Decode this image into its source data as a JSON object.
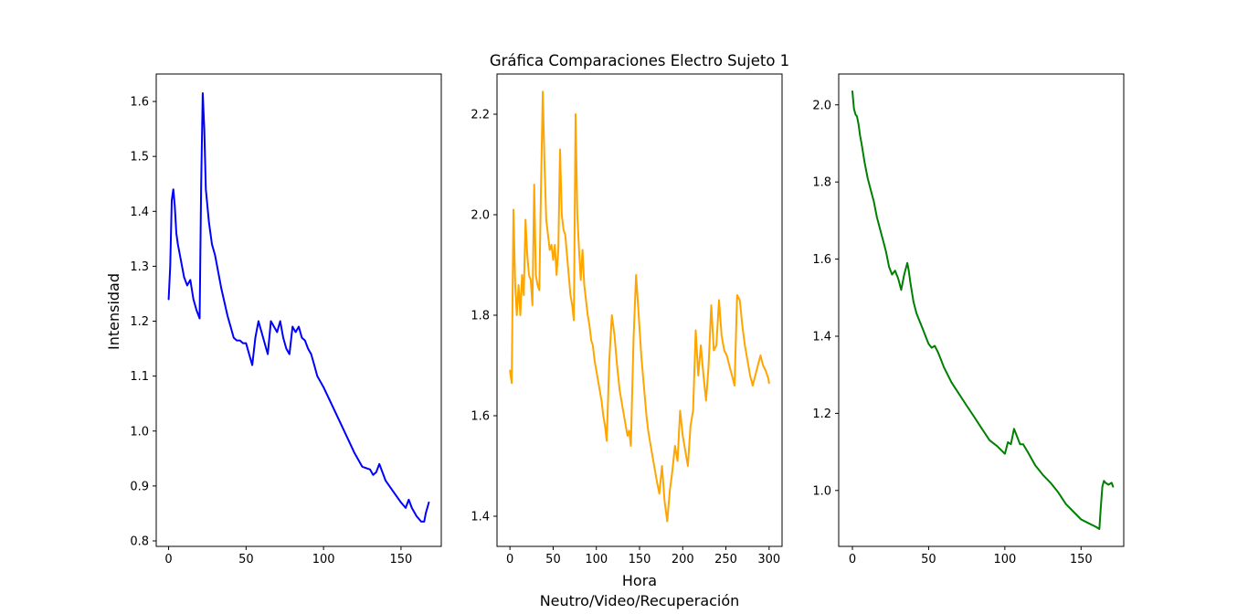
{
  "title": "Gráfica Comparaciones Electro Sujeto 1",
  "xlabel": "Hora",
  "xlabel_sub": "Neutro/Video/Recuperación",
  "ylabel": "Intensidad",
  "chart_data": [
    {
      "type": "line",
      "color": "#0000ff",
      "xlim": [
        -8,
        176
      ],
      "ylim": [
        0.79,
        1.65
      ],
      "xticks": [
        0,
        50,
        100,
        150
      ],
      "yticks": [
        0.8,
        0.9,
        1.0,
        1.1,
        1.2,
        1.3,
        1.4,
        1.5,
        1.6
      ],
      "ytick_labels": [
        "0.8",
        "0.9",
        "1.0",
        "1.1",
        "1.2",
        "1.3",
        "1.4",
        "1.5",
        "1.6"
      ],
      "series": [
        {
          "x": [
            0,
            1,
            2,
            3,
            4,
            5,
            6,
            8,
            10,
            12,
            14,
            16,
            18,
            20,
            21,
            22,
            23,
            24,
            26,
            28,
            30,
            32,
            34,
            36,
            38,
            40,
            42,
            44,
            46,
            48,
            50,
            52,
            54,
            56,
            58,
            60,
            62,
            64,
            66,
            68,
            70,
            72,
            74,
            76,
            78,
            80,
            82,
            84,
            86,
            88,
            90,
            92,
            94,
            96,
            98,
            100,
            105,
            110,
            115,
            120,
            125,
            130,
            132,
            134,
            136,
            140,
            145,
            150,
            153,
            155,
            157,
            160,
            163,
            165,
            166,
            168
          ],
          "y": [
            1.24,
            1.3,
            1.42,
            1.44,
            1.41,
            1.36,
            1.34,
            1.31,
            1.28,
            1.265,
            1.275,
            1.24,
            1.22,
            1.205,
            1.45,
            1.615,
            1.55,
            1.44,
            1.38,
            1.34,
            1.32,
            1.29,
            1.26,
            1.235,
            1.21,
            1.19,
            1.17,
            1.165,
            1.165,
            1.16,
            1.16,
            1.14,
            1.12,
            1.17,
            1.2,
            1.18,
            1.16,
            1.14,
            1.2,
            1.19,
            1.18,
            1.2,
            1.17,
            1.15,
            1.14,
            1.19,
            1.18,
            1.19,
            1.17,
            1.165,
            1.15,
            1.14,
            1.12,
            1.1,
            1.09,
            1.08,
            1.05,
            1.02,
            0.99,
            0.96,
            0.935,
            0.93,
            0.92,
            0.925,
            0.94,
            0.91,
            0.89,
            0.87,
            0.86,
            0.875,
            0.86,
            0.845,
            0.835,
            0.835,
            0.85,
            0.87
          ]
        }
      ]
    },
    {
      "type": "line",
      "color": "#ffa500",
      "xlim": [
        -15,
        315
      ],
      "ylim": [
        1.34,
        2.28
      ],
      "xticks": [
        0,
        50,
        100,
        150,
        200,
        250,
        300
      ],
      "xtick_labels": [
        "0",
        "50",
        "100",
        "150",
        "200",
        "250",
        "300"
      ],
      "yticks": [
        1.4,
        1.6,
        1.8,
        2.0,
        2.2
      ],
      "ytick_labels": [
        "1.4",
        "1.6",
        "1.8",
        "2.0",
        "2.2"
      ],
      "series": [
        {
          "x": [
            0,
            2,
            4,
            6,
            8,
            10,
            12,
            14,
            16,
            18,
            20,
            22,
            24,
            26,
            28,
            30,
            32,
            34,
            36,
            38,
            40,
            42,
            44,
            46,
            48,
            50,
            52,
            54,
            56,
            58,
            60,
            62,
            64,
            66,
            68,
            70,
            72,
            74,
            76,
            78,
            80,
            82,
            84,
            86,
            88,
            90,
            92,
            94,
            96,
            98,
            100,
            102,
            104,
            106,
            108,
            110,
            112,
            115,
            118,
            121,
            124,
            127,
            130,
            132,
            134,
            136,
            138,
            140,
            143,
            146,
            149,
            152,
            155,
            158,
            160,
            162,
            164,
            166,
            168,
            170,
            173,
            176,
            179,
            182,
            185,
            188,
            191,
            194,
            197,
            200,
            203,
            206,
            209,
            212,
            215,
            218,
            221,
            224,
            227,
            230,
            233,
            236,
            239,
            242,
            245,
            248,
            251,
            254,
            257,
            260,
            263,
            266,
            269,
            272,
            275,
            278,
            281,
            284,
            287,
            290,
            293,
            296,
            299,
            300
          ],
          "y": [
            1.69,
            1.665,
            2.01,
            1.86,
            1.8,
            1.86,
            1.8,
            1.88,
            1.84,
            1.99,
            1.92,
            1.88,
            1.87,
            1.82,
            2.06,
            1.88,
            1.86,
            1.85,
            2.06,
            2.245,
            2.1,
            1.99,
            1.96,
            1.93,
            1.94,
            1.91,
            1.94,
            1.88,
            1.93,
            2.13,
            2.0,
            1.97,
            1.96,
            1.92,
            1.88,
            1.84,
            1.82,
            1.79,
            2.2,
            2.0,
            1.93,
            1.87,
            1.93,
            1.86,
            1.83,
            1.8,
            1.78,
            1.75,
            1.74,
            1.71,
            1.69,
            1.67,
            1.65,
            1.63,
            1.6,
            1.58,
            1.55,
            1.71,
            1.8,
            1.76,
            1.7,
            1.65,
            1.62,
            1.6,
            1.58,
            1.56,
            1.57,
            1.54,
            1.75,
            1.88,
            1.8,
            1.72,
            1.66,
            1.6,
            1.57,
            1.55,
            1.53,
            1.51,
            1.49,
            1.47,
            1.445,
            1.5,
            1.43,
            1.39,
            1.45,
            1.49,
            1.54,
            1.51,
            1.61,
            1.56,
            1.53,
            1.5,
            1.58,
            1.61,
            1.77,
            1.68,
            1.74,
            1.68,
            1.63,
            1.7,
            1.82,
            1.73,
            1.74,
            1.83,
            1.76,
            1.73,
            1.72,
            1.7,
            1.68,
            1.66,
            1.84,
            1.83,
            1.78,
            1.74,
            1.71,
            1.68,
            1.66,
            1.68,
            1.7,
            1.72,
            1.7,
            1.69,
            1.675,
            1.665
          ]
        }
      ]
    },
    {
      "type": "line",
      "color": "#008000",
      "xlim": [
        -9,
        178
      ],
      "ylim": [
        0.855,
        2.08
      ],
      "xticks": [
        0,
        50,
        100,
        150
      ],
      "yticks": [
        1.0,
        1.2,
        1.4,
        1.6,
        1.8,
        2.0
      ],
      "ytick_labels": [
        "1.0",
        "1.2",
        "1.4",
        "1.6",
        "1.8",
        "2.0"
      ],
      "series": [
        {
          "x": [
            0,
            1,
            2,
            3,
            4,
            5,
            6,
            8,
            10,
            12,
            14,
            16,
            18,
            20,
            22,
            24,
            26,
            28,
            30,
            32,
            34,
            36,
            37,
            38,
            40,
            42,
            44,
            46,
            48,
            50,
            52,
            54,
            56,
            58,
            60,
            65,
            70,
            75,
            80,
            85,
            90,
            95,
            100,
            102,
            104,
            106,
            108,
            110,
            112,
            115,
            120,
            125,
            130,
            135,
            140,
            145,
            150,
            155,
            160,
            162,
            163,
            164,
            165,
            166,
            168,
            170,
            171
          ],
          "y": [
            2.035,
            1.99,
            1.975,
            1.97,
            1.95,
            1.92,
            1.9,
            1.85,
            1.81,
            1.78,
            1.75,
            1.71,
            1.68,
            1.65,
            1.62,
            1.58,
            1.56,
            1.57,
            1.55,
            1.52,
            1.56,
            1.59,
            1.57,
            1.54,
            1.49,
            1.46,
            1.44,
            1.42,
            1.4,
            1.38,
            1.37,
            1.375,
            1.36,
            1.34,
            1.32,
            1.28,
            1.25,
            1.22,
            1.19,
            1.16,
            1.13,
            1.115,
            1.095,
            1.125,
            1.12,
            1.16,
            1.14,
            1.12,
            1.12,
            1.1,
            1.065,
            1.04,
            1.02,
            0.995,
            0.965,
            0.945,
            0.925,
            0.915,
            0.905,
            0.9,
            0.96,
            1.01,
            1.025,
            1.02,
            1.015,
            1.02,
            1.01
          ]
        }
      ]
    }
  ]
}
